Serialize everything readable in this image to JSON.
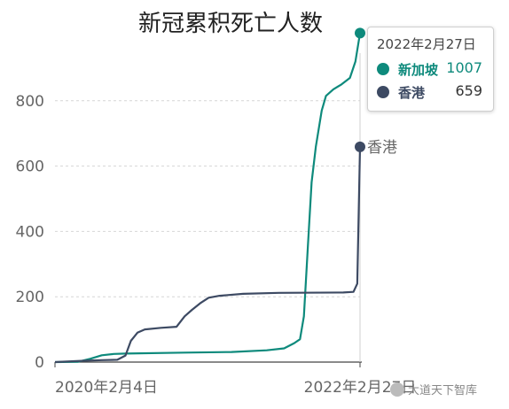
{
  "chart_data": {
    "type": "line",
    "title": "新冠累积死亡人数",
    "xlabel": "",
    "ylabel": "",
    "ylim": [
      0,
      1000
    ],
    "yticks": [
      0,
      200,
      400,
      600,
      800
    ],
    "xticks": [
      "2020年2月4日",
      "2022年2月27日"
    ],
    "xrange": [
      "2020-01-01",
      "2022-02-27"
    ],
    "grid": true,
    "series": [
      {
        "name": "新加坡",
        "color": "#0e8a7c",
        "points": [
          [
            "2020-01-01",
            0
          ],
          [
            "2020-03-01",
            1
          ],
          [
            "2020-04-01",
            10
          ],
          [
            "2020-05-01",
            21
          ],
          [
            "2020-06-01",
            25
          ],
          [
            "2020-07-01",
            26
          ],
          [
            "2020-12-01",
            29
          ],
          [
            "2021-04-01",
            31
          ],
          [
            "2021-07-01",
            36
          ],
          [
            "2021-08-15",
            42
          ],
          [
            "2021-09-10",
            58
          ],
          [
            "2021-09-25",
            70
          ],
          [
            "2021-10-05",
            140
          ],
          [
            "2021-10-15",
            350
          ],
          [
            "2021-10-25",
            550
          ],
          [
            "2021-11-05",
            660
          ],
          [
            "2021-11-20",
            770
          ],
          [
            "2021-12-01",
            815
          ],
          [
            "2021-12-20",
            835
          ],
          [
            "2022-01-10",
            850
          ],
          [
            "2022-02-01",
            870
          ],
          [
            "2022-02-15",
            920
          ],
          [
            "2022-02-27",
            1007
          ]
        ]
      },
      {
        "name": "香港",
        "color": "#3d4a63",
        "points": [
          [
            "2020-01-01",
            0
          ],
          [
            "2020-03-15",
            4
          ],
          [
            "2020-05-01",
            6
          ],
          [
            "2020-06-10",
            7
          ],
          [
            "2020-07-01",
            20
          ],
          [
            "2020-07-15",
            65
          ],
          [
            "2020-08-01",
            90
          ],
          [
            "2020-08-20",
            100
          ],
          [
            "2020-10-01",
            105
          ],
          [
            "2020-11-10",
            108
          ],
          [
            "2020-12-01",
            140
          ],
          [
            "2020-12-20",
            160
          ],
          [
            "2021-01-10",
            180
          ],
          [
            "2021-02-01",
            197
          ],
          [
            "2021-03-01",
            203
          ],
          [
            "2021-05-01",
            209
          ],
          [
            "2021-08-01",
            212
          ],
          [
            "2022-01-15",
            213
          ],
          [
            "2022-02-10",
            215
          ],
          [
            "2022-02-20",
            240
          ],
          [
            "2022-02-27",
            659
          ]
        ]
      }
    ],
    "end_label": "香港",
    "tooltip": {
      "date": "2022年2月27日",
      "rows": [
        {
          "name": "新加坡",
          "value": "1007",
          "color": "#0e8a7c"
        },
        {
          "name": "香港",
          "value": "659",
          "color": "#3d4a63"
        }
      ]
    }
  },
  "watermark": "大道天下智库"
}
